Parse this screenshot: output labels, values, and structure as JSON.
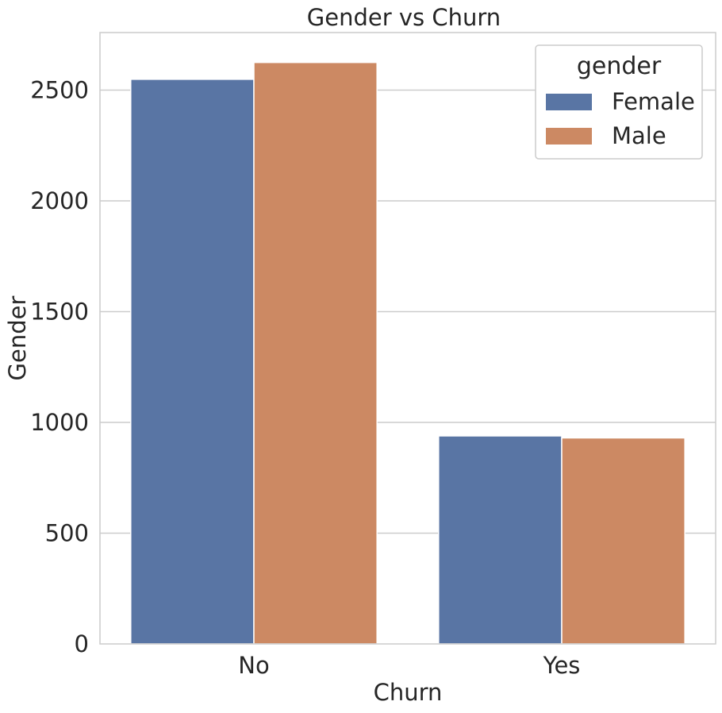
{
  "chart_data": {
    "type": "bar",
    "title": "Gender vs Churn",
    "xlabel": "Churn",
    "ylabel": "Gender",
    "categories": [
      "No",
      "Yes"
    ],
    "series": [
      {
        "name": "Female",
        "values": [
          2549,
          939
        ]
      },
      {
        "name": "Male",
        "values": [
          2625,
          930
        ]
      }
    ],
    "ylim": [
      0,
      2760
    ],
    "yticks": [
      0,
      500,
      1000,
      1500,
      2000,
      2500
    ],
    "grid": true,
    "legend": {
      "title": "gender",
      "placement": "top-right"
    },
    "colors": {
      "Female": "#5975a4",
      "Male": "#cc8963"
    }
  }
}
